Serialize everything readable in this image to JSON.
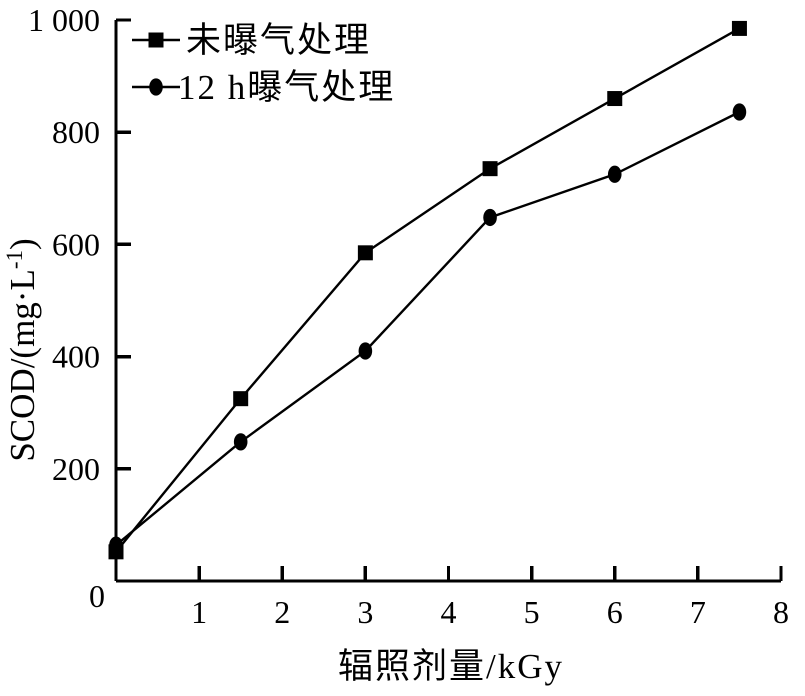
{
  "figure": {
    "background": "#ffffff",
    "ink_color": "#000000"
  },
  "chart_data": {
    "type": "line",
    "title": "",
    "xlabel": "辐照剂量/kGy",
    "ylabel": "SCOD/(mg·L⁻¹)",
    "ylabel_parts": {
      "pre": "SCOD/(mg·L",
      "sup": "-1",
      "post": ")"
    },
    "xlim": [
      0,
      8
    ],
    "ylim": [
      0,
      1000
    ],
    "x_ticks": [
      1,
      2,
      3,
      4,
      5,
      6,
      7,
      8
    ],
    "x_tick_labels": [
      "1",
      "2",
      "3",
      "4",
      "5",
      "6",
      "7",
      "8"
    ],
    "y_ticks": [
      200,
      400,
      600,
      800,
      1000
    ],
    "y_tick_labels": [
      "200",
      "400",
      "600",
      "800",
      "1 000"
    ],
    "origin_label": "0",
    "grid": false,
    "legend_position": "top-left-inside",
    "categories_x": [
      0,
      1.5,
      3,
      4.5,
      6,
      7.5
    ],
    "series": [
      {
        "name": "未曝气处理",
        "marker": "square",
        "color": "#000000",
        "x": [
          0,
          1.5,
          3,
          4.5,
          6,
          7.5
        ],
        "values": [
          52,
          325,
          585,
          735,
          860,
          985
        ]
      },
      {
        "name": "12 h曝气处理",
        "marker": "circle",
        "color": "#000000",
        "x": [
          0,
          1.5,
          3,
          4.5,
          6,
          7.5
        ],
        "values": [
          64,
          248,
          410,
          648,
          725,
          836
        ]
      }
    ]
  }
}
